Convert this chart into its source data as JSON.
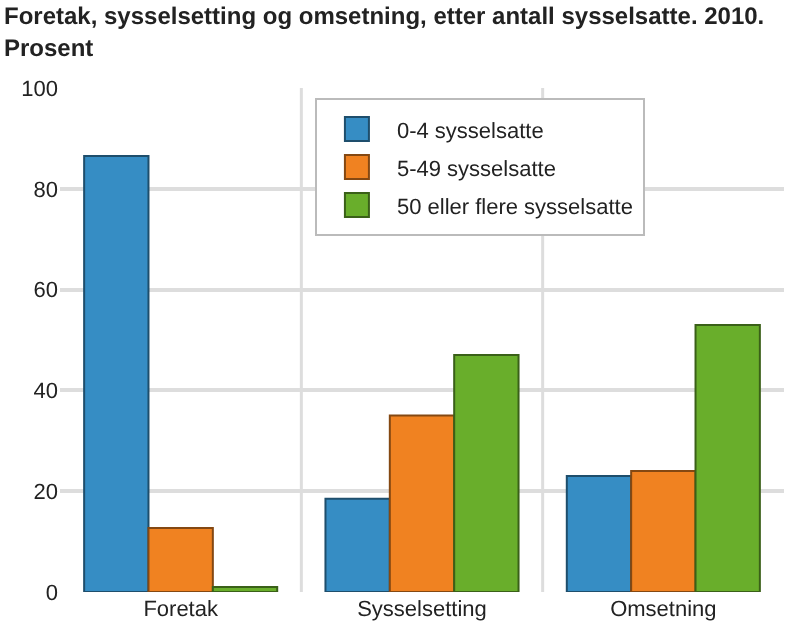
{
  "chart_data": {
    "type": "bar",
    "title": "Foretak, sysselsetting og omsetning, etter antall sysselsatte. 2010. Prosent",
    "categories": [
      "Foretak",
      "Sysselsetting",
      "Omsetning"
    ],
    "series": [
      {
        "name": "0-4 sysselsatte",
        "color": "#368dc4",
        "values": [
          86.5,
          18.5,
          23
        ]
      },
      {
        "name": "5-49 sysselsatte",
        "color": "#f08221",
        "values": [
          12.7,
          35,
          24
        ]
      },
      {
        "name": "50 eller flere sysselsatte",
        "color": "#69ae2b",
        "values": [
          1,
          47,
          53
        ]
      }
    ],
    "ylim": [
      0,
      100
    ],
    "yticks": [
      0,
      20,
      40,
      60,
      80,
      100
    ],
    "grid": true,
    "legend": "top"
  }
}
